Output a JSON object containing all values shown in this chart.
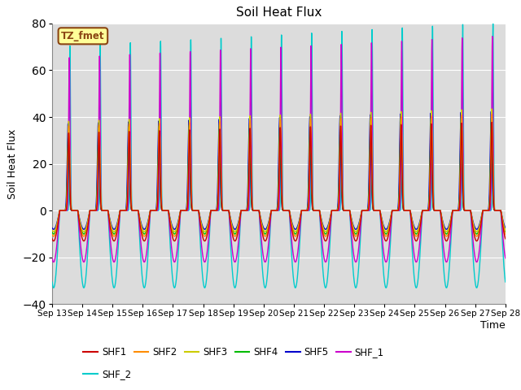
{
  "title": "Soil Heat Flux",
  "xlabel": "Time",
  "ylabel": "Soil Heat Flux",
  "ylim": [
    -40,
    80
  ],
  "yticks": [
    -40,
    -20,
    0,
    20,
    40,
    60,
    80
  ],
  "xlim_days": [
    13,
    28
  ],
  "xtick_days": [
    13,
    14,
    15,
    16,
    17,
    18,
    19,
    20,
    21,
    22,
    23,
    24,
    25,
    26,
    27,
    28
  ],
  "xtick_labels": [
    "Sep 13",
    "Sep 14",
    "Sep 15",
    "Sep 16",
    "Sep 17",
    "Sep 18",
    "Sep 19",
    "Sep 20",
    "Sep 21",
    "Sep 22",
    "Sep 23",
    "Sep 24",
    "Sep 25",
    "Sep 26",
    "Sep 27",
    "Sep 28"
  ],
  "annotation_text": "TZ_fmet",
  "annotation_color": "#8B4513",
  "annotation_bg": "#FFFF99",
  "plot_bg": "#DCDCDC",
  "fig_bg": "#FFFFFF",
  "series": {
    "SHF1": {
      "color": "#CC0000",
      "lw": 1.0
    },
    "SHF2": {
      "color": "#FF8C00",
      "lw": 1.0
    },
    "SHF3": {
      "color": "#CCCC00",
      "lw": 1.0
    },
    "SHF4": {
      "color": "#00BB00",
      "lw": 1.0
    },
    "SHF5": {
      "color": "#0000CC",
      "lw": 1.0
    },
    "SHF_1": {
      "color": "#CC00CC",
      "lw": 1.0
    },
    "SHF_2": {
      "color": "#00CCCC",
      "lw": 1.0
    }
  },
  "legend_row1": [
    "SHF1",
    "SHF2",
    "SHF3",
    "SHF4",
    "SHF5",
    "SHF_1"
  ],
  "legend_row2": [
    "SHF_2"
  ]
}
